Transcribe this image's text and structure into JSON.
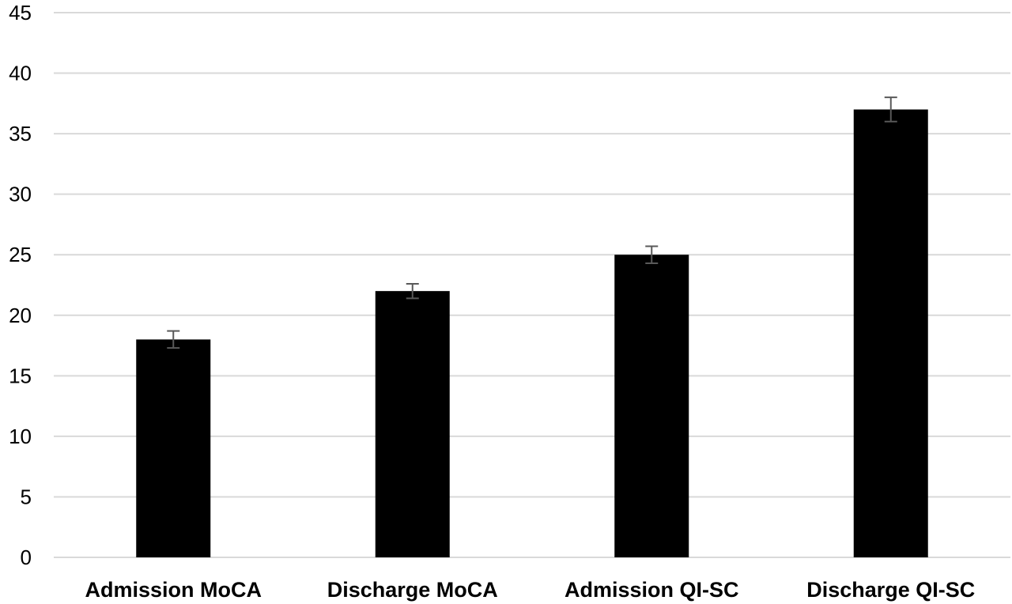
{
  "chart_data": {
    "type": "bar",
    "title": "",
    "xlabel": "",
    "ylabel": "",
    "categories": [
      "Admission MoCA",
      "Discharge MoCA",
      "Admission QI-SC",
      "Discharge QI-SC"
    ],
    "series": [
      {
        "values": [
          18,
          22,
          25,
          37
        ],
        "error": [
          0.7,
          0.6,
          0.7,
          1.0
        ]
      }
    ],
    "ylim": [
      0,
      45
    ],
    "yticks": [
      0,
      5,
      10,
      15,
      20,
      25,
      30,
      35,
      40,
      45
    ],
    "grid": true,
    "legend": "none",
    "colors": {
      "bar": "#000000",
      "grid": "#d9d9d9",
      "error_bar": "#595959",
      "text": "#000000"
    }
  }
}
